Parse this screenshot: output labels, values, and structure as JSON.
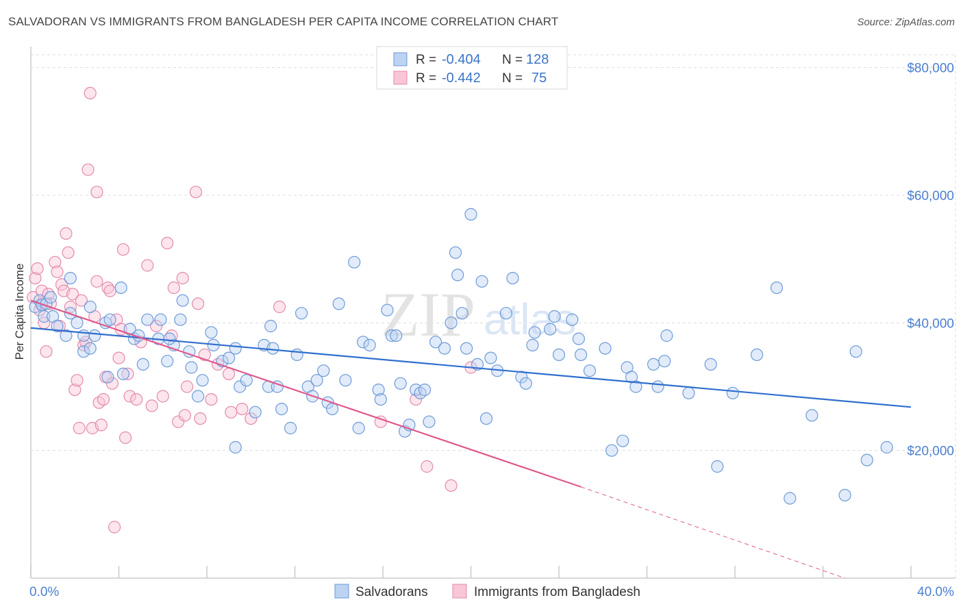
{
  "title": "SALVADORAN VS IMMIGRANTS FROM BANGLADESH PER CAPITA INCOME CORRELATION CHART",
  "source": "Source: ZipAtlas.com",
  "watermark": {
    "zip": "ZIP",
    "atlas": "atlas"
  },
  "colors": {
    "blue": "#5b8fd6",
    "pink": "#e88bab",
    "blue_line": "#2f6fce",
    "pink_line": "#e0588c",
    "tick_text": "#4a7fd0"
  },
  "legend_top": {
    "rows": [
      {
        "r_label": "R = ",
        "r_value": "-0.404",
        "n_label": "N = ",
        "n_value": "128"
      },
      {
        "r_label": "R = ",
        "r_value": "-0.442",
        "n_label": "N = ",
        "n_value": "75"
      }
    ]
  },
  "legend_bottom": {
    "series1": "Salvadorans",
    "series2": "Immigrants from Bangladesh"
  },
  "chart_data": {
    "type": "scatter",
    "title": "SALVADORAN VS IMMIGRANTS FROM BANGLADESH PER CAPITA INCOME CORRELATION CHART",
    "xlabel": "",
    "ylabel": "Per Capita Income",
    "xlim": [
      0,
      40
    ],
    "ylim": [
      0,
      82000
    ],
    "x_tick_labels": [
      "0.0%",
      "40.0%"
    ],
    "y_ticks": [
      20000,
      40000,
      60000,
      80000
    ],
    "y_tick_labels": [
      "$20,000",
      "$40,000",
      "$60,000",
      "$80,000"
    ],
    "grid": true,
    "legend_position": "top-center",
    "series": [
      {
        "name": "Salvadorans",
        "color": "#5b8fd6",
        "trend": {
          "x": [
            0,
            40
          ],
          "y": [
            39200,
            26800
          ]
        },
        "points": [
          [
            0.2,
            42500
          ],
          [
            0.4,
            43500
          ],
          [
            0.5,
            42800
          ],
          [
            0.6,
            41000
          ],
          [
            0.7,
            43000
          ],
          [
            1.0,
            41000
          ],
          [
            1.2,
            39500
          ],
          [
            1.6,
            38000
          ],
          [
            1.8,
            47000
          ],
          [
            2.1,
            40000
          ],
          [
            2.4,
            35500
          ],
          [
            2.7,
            36000
          ],
          [
            2.7,
            42500
          ],
          [
            2.9,
            38000
          ],
          [
            3.4,
            40000
          ],
          [
            3.6,
            40500
          ],
          [
            4.1,
            45500
          ],
          [
            4.5,
            39000
          ],
          [
            4.7,
            37500
          ],
          [
            4.9,
            38000
          ],
          [
            5.1,
            33500
          ],
          [
            5.3,
            40500
          ],
          [
            5.8,
            37500
          ],
          [
            5.9,
            40500
          ],
          [
            6.2,
            34000
          ],
          [
            6.5,
            36500
          ],
          [
            6.8,
            40500
          ],
          [
            6.9,
            43500
          ],
          [
            7.2,
            35500
          ],
          [
            7.3,
            33000
          ],
          [
            7.6,
            28500
          ],
          [
            7.8,
            31000
          ],
          [
            8.2,
            38500
          ],
          [
            8.3,
            36500
          ],
          [
            8.7,
            34000
          ],
          [
            9.0,
            34500
          ],
          [
            9.3,
            36000
          ],
          [
            9.5,
            30000
          ],
          [
            9.8,
            31000
          ],
          [
            10.2,
            26000
          ],
          [
            10.6,
            36500
          ],
          [
            10.8,
            30000
          ],
          [
            10.9,
            39500
          ],
          [
            11.2,
            30000
          ],
          [
            11.4,
            26500
          ],
          [
            11.8,
            23500
          ],
          [
            12.1,
            35000
          ],
          [
            12.3,
            41500
          ],
          [
            12.6,
            30000
          ],
          [
            12.8,
            28500
          ],
          [
            13.0,
            31000
          ],
          [
            13.3,
            32500
          ],
          [
            13.5,
            27500
          ],
          [
            13.7,
            26500
          ],
          [
            14.0,
            43000
          ],
          [
            14.3,
            31000
          ],
          [
            14.7,
            49500
          ],
          [
            14.9,
            23500
          ],
          [
            15.1,
            37000
          ],
          [
            15.4,
            36500
          ],
          [
            15.8,
            29500
          ],
          [
            15.9,
            28000
          ],
          [
            16.2,
            42000
          ],
          [
            16.4,
            38000
          ],
          [
            16.8,
            30500
          ],
          [
            17.0,
            23000
          ],
          [
            17.2,
            24000
          ],
          [
            17.5,
            29500
          ],
          [
            17.7,
            29000
          ],
          [
            17.9,
            29500
          ],
          [
            18.1,
            24500
          ],
          [
            18.4,
            37000
          ],
          [
            18.8,
            36000
          ],
          [
            19.1,
            40000
          ],
          [
            19.3,
            51000
          ],
          [
            19.4,
            47500
          ],
          [
            19.6,
            41500
          ],
          [
            19.8,
            36000
          ],
          [
            20.0,
            57000
          ],
          [
            20.3,
            33500
          ],
          [
            20.5,
            46500
          ],
          [
            20.7,
            25000
          ],
          [
            20.9,
            34500
          ],
          [
            21.2,
            32500
          ],
          [
            21.6,
            41500
          ],
          [
            21.9,
            47000
          ],
          [
            22.3,
            31500
          ],
          [
            22.5,
            30500
          ],
          [
            22.8,
            36500
          ],
          [
            23.6,
            39000
          ],
          [
            23.8,
            41000
          ],
          [
            24.0,
            35000
          ],
          [
            24.6,
            40500
          ],
          [
            24.9,
            37500
          ],
          [
            25.0,
            35000
          ],
          [
            25.4,
            32500
          ],
          [
            26.1,
            36000
          ],
          [
            26.4,
            20000
          ],
          [
            26.9,
            21500
          ],
          [
            27.1,
            33000
          ],
          [
            27.3,
            31500
          ],
          [
            27.5,
            30000
          ],
          [
            28.3,
            33500
          ],
          [
            28.5,
            30000
          ],
          [
            28.8,
            34000
          ],
          [
            28.9,
            38000
          ],
          [
            29.9,
            29000
          ],
          [
            30.9,
            33500
          ],
          [
            31.2,
            17500
          ],
          [
            31.9,
            29000
          ],
          [
            33.0,
            35000
          ],
          [
            33.9,
            45500
          ],
          [
            34.5,
            12500
          ],
          [
            35.5,
            25500
          ],
          [
            37.0,
            13000
          ],
          [
            37.5,
            35500
          ],
          [
            38.0,
            18500
          ],
          [
            38.9,
            20500
          ],
          [
            4.2,
            32000
          ],
          [
            9.3,
            20500
          ],
          [
            6.3,
            37500
          ],
          [
            1.8,
            41500
          ],
          [
            2.4,
            38000
          ],
          [
            3.5,
            31500
          ],
          [
            11.0,
            36000
          ],
          [
            16.6,
            38000
          ],
          [
            22.9,
            38500
          ],
          [
            0.9,
            44000
          ]
        ]
      },
      {
        "name": "Immigrants from Bangladesh",
        "color": "#e88bab",
        "trend": {
          "x": [
            0,
            25
          ],
          "y": [
            43500,
            14300
          ]
        },
        "trend_dashed": {
          "x": [
            25,
            37
          ],
          "y": [
            14300,
            0
          ]
        },
        "points": [
          [
            0.1,
            44000
          ],
          [
            0.2,
            47000
          ],
          [
            0.3,
            48500
          ],
          [
            0.4,
            42000
          ],
          [
            0.5,
            45000
          ],
          [
            0.5,
            43000
          ],
          [
            0.6,
            40000
          ],
          [
            0.7,
            35500
          ],
          [
            0.8,
            44500
          ],
          [
            0.9,
            43000
          ],
          [
            1.1,
            49500
          ],
          [
            1.2,
            48000
          ],
          [
            1.3,
            39500
          ],
          [
            1.4,
            46000
          ],
          [
            1.5,
            45000
          ],
          [
            1.6,
            54000
          ],
          [
            1.7,
            51000
          ],
          [
            1.8,
            42500
          ],
          [
            1.9,
            44500
          ],
          [
            2.0,
            29500
          ],
          [
            2.1,
            31000
          ],
          [
            2.2,
            23500
          ],
          [
            2.3,
            43500
          ],
          [
            2.4,
            36500
          ],
          [
            2.5,
            37000
          ],
          [
            2.6,
            64000
          ],
          [
            2.7,
            76000
          ],
          [
            2.8,
            23500
          ],
          [
            2.9,
            41000
          ],
          [
            3.0,
            60500
          ],
          [
            3.0,
            46500
          ],
          [
            3.1,
            27500
          ],
          [
            3.2,
            24000
          ],
          [
            3.3,
            28000
          ],
          [
            3.4,
            31500
          ],
          [
            3.5,
            45500
          ],
          [
            3.6,
            45000
          ],
          [
            3.7,
            30500
          ],
          [
            3.8,
            8000
          ],
          [
            3.9,
            40500
          ],
          [
            4.0,
            34500
          ],
          [
            4.1,
            39000
          ],
          [
            4.2,
            51500
          ],
          [
            4.3,
            22000
          ],
          [
            4.4,
            32000
          ],
          [
            4.5,
            28500
          ],
          [
            4.8,
            28000
          ],
          [
            5.0,
            37000
          ],
          [
            5.3,
            49000
          ],
          [
            5.5,
            27000
          ],
          [
            5.7,
            39500
          ],
          [
            6.0,
            28500
          ],
          [
            6.2,
            52500
          ],
          [
            6.4,
            38000
          ],
          [
            6.5,
            45500
          ],
          [
            6.7,
            24500
          ],
          [
            6.9,
            47000
          ],
          [
            7.0,
            25500
          ],
          [
            7.1,
            30000
          ],
          [
            7.5,
            60500
          ],
          [
            7.6,
            43000
          ],
          [
            7.7,
            25000
          ],
          [
            7.9,
            35000
          ],
          [
            8.2,
            28000
          ],
          [
            8.5,
            33500
          ],
          [
            9.0,
            32000
          ],
          [
            9.1,
            26000
          ],
          [
            9.6,
            26500
          ],
          [
            10.0,
            25000
          ],
          [
            11.3,
            42500
          ],
          [
            15.9,
            24500
          ],
          [
            17.5,
            28000
          ],
          [
            18.0,
            17500
          ],
          [
            19.1,
            14500
          ],
          [
            20.0,
            33000
          ]
        ]
      }
    ]
  }
}
